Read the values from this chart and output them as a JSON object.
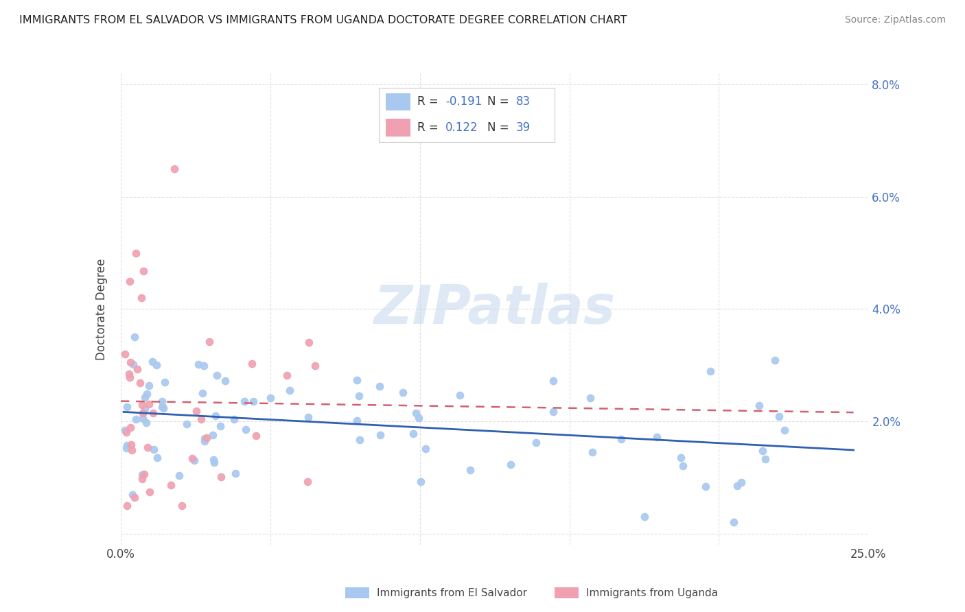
{
  "title": "IMMIGRANTS FROM EL SALVADOR VS IMMIGRANTS FROM UGANDA DOCTORATE DEGREE CORRELATION CHART",
  "source": "Source: ZipAtlas.com",
  "ylabel": "Doctorate Degree",
  "xlim": [
    0.0,
    0.25
  ],
  "ylim": [
    -0.002,
    0.082
  ],
  "xticks": [
    0.0,
    0.05,
    0.1,
    0.15,
    0.2,
    0.25
  ],
  "yticks": [
    0.0,
    0.02,
    0.04,
    0.06,
    0.08
  ],
  "xticklabels": [
    "0.0%",
    "",
    "",
    "",
    "",
    "25.0%"
  ],
  "yticklabels_right": [
    "",
    "2.0%",
    "4.0%",
    "6.0%",
    "8.0%"
  ],
  "el_salvador_R": -0.191,
  "el_salvador_N": 83,
  "uganda_R": 0.122,
  "uganda_N": 39,
  "color_el_salvador": "#a8c8f0",
  "color_uganda": "#f0a0b0",
  "trendline_el_salvador": "#3060b0",
  "trendline_uganda": "#d06070",
  "watermark": "ZIPatlas",
  "background_color": "#ffffff",
  "grid_color": "#e0e0e0"
}
